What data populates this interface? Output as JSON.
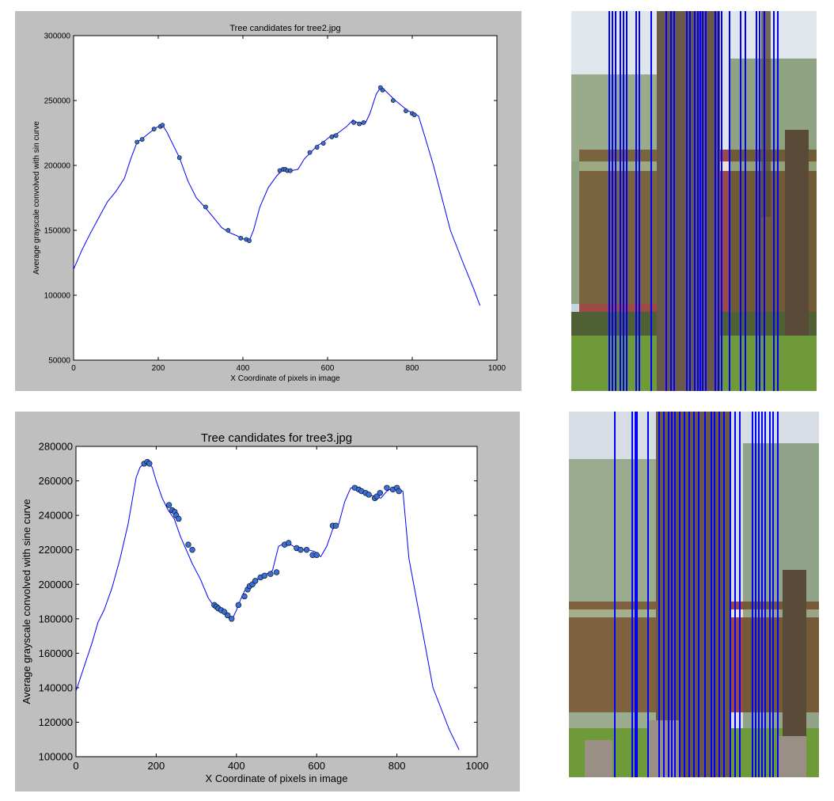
{
  "chart_data": [
    {
      "type": "line",
      "title": "Tree candidates for tree2.jpg",
      "xlabel": "X Coordinate of pixels in image",
      "ylabel": "Average grayscale convolved with sin curve",
      "xlim": [
        0,
        1000
      ],
      "ylim": [
        50000,
        300000
      ],
      "xticks": [
        0,
        200,
        400,
        600,
        800,
        1000
      ],
      "yticks": [
        50000,
        100000,
        150000,
        200000,
        250000,
        300000
      ],
      "xtick_labels": [
        "0",
        "200",
        "400",
        "600",
        "800",
        "1000"
      ],
      "ytick_labels": [
        "50000",
        "100000",
        "150000",
        "200000",
        "250000",
        "300000"
      ],
      "grid": false,
      "line_color": "#0000ff",
      "marker_color": "#3a6fd8",
      "series": [
        {
          "x": [
            0,
            20,
            40,
            60,
            80,
            100,
            120,
            135,
            150,
            160,
            175,
            190,
            200,
            210,
            220,
            235,
            250,
            270,
            290,
            310,
            330,
            350,
            370,
            385,
            395,
            405,
            415,
            425,
            440,
            460,
            480,
            495,
            505,
            515,
            530,
            545,
            560,
            575,
            590,
            605,
            625,
            645,
            660,
            670,
            680,
            690,
            700,
            715,
            725,
            735,
            760,
            790,
            805,
            815,
            830,
            850,
            870,
            890,
            920,
            945,
            960
          ],
          "y": [
            120000,
            135000,
            148000,
            160000,
            172000,
            180000,
            190000,
            205000,
            218000,
            220000,
            224000,
            228000,
            230000,
            231000,
            226000,
            216000,
            206000,
            188000,
            175000,
            168000,
            160000,
            152000,
            148000,
            146000,
            144000,
            143000,
            142000,
            150000,
            168000,
            183000,
            192000,
            197000,
            197000,
            196000,
            197000,
            205000,
            210000,
            215000,
            218000,
            222000,
            225000,
            230000,
            235000,
            233000,
            232000,
            233000,
            240000,
            255000,
            260000,
            258000,
            250000,
            242000,
            240000,
            238000,
            222000,
            200000,
            175000,
            150000,
            125000,
            105000,
            92000
          ]
        }
      ],
      "markers": {
        "x": [
          150,
          162,
          190,
          205,
          210,
          250,
          312,
          365,
          395,
          408,
          415,
          487,
          495,
          500,
          505,
          512,
          558,
          575,
          590,
          610,
          620,
          662,
          675,
          685,
          725,
          730,
          755,
          785,
          800,
          805
        ],
        "y": [
          218000,
          220000,
          228000,
          230000,
          231000,
          206000,
          168000,
          150000,
          144000,
          143000,
          142000,
          196000,
          197000,
          197000,
          196000,
          196000,
          210000,
          214000,
          217000,
          222000,
          223000,
          233000,
          232000,
          233000,
          260000,
          258000,
          250000,
          242000,
          240000,
          239000
        ]
      }
    },
    {
      "type": "line",
      "title": "Tree candidates for tree3.jpg",
      "xlabel": "X Coordinate of pixels in image",
      "ylabel": "Average grayscale convolved with sine curve",
      "xlim": [
        0,
        1000
      ],
      "ylim": [
        100000,
        280000
      ],
      "xticks": [
        0,
        200,
        400,
        600,
        800,
        1000
      ],
      "yticks": [
        100000,
        120000,
        140000,
        160000,
        180000,
        200000,
        220000,
        240000,
        260000,
        280000
      ],
      "xtick_labels": [
        "0",
        "200",
        "400",
        "600",
        "800",
        "1000"
      ],
      "ytick_labels": [
        "100000",
        "120000",
        "140000",
        "160000",
        "180000",
        "200000",
        "220000",
        "240000",
        "260000",
        "280000"
      ],
      "grid": false,
      "line_color": "#0000ff",
      "marker_color": "#3a6fd8",
      "series": [
        {
          "x": [
            0,
            20,
            40,
            55,
            70,
            90,
            110,
            130,
            150,
            160,
            170,
            180,
            190,
            200,
            215,
            230,
            245,
            260,
            275,
            290,
            310,
            330,
            345,
            360,
            375,
            390,
            400,
            410,
            420,
            430,
            445,
            460,
            475,
            490,
            505,
            520,
            535,
            550,
            565,
            580,
            595,
            610,
            625,
            640,
            655,
            670,
            685,
            700,
            715,
            730,
            745,
            760,
            775,
            790,
            805,
            815,
            830,
            850,
            870,
            890,
            910,
            930,
            955
          ],
          "y": [
            138000,
            152000,
            166000,
            178000,
            185000,
            198000,
            215000,
            235000,
            262000,
            268000,
            270000,
            270000,
            268000,
            260000,
            250000,
            243000,
            238000,
            228000,
            220000,
            212000,
            203000,
            192000,
            187000,
            184000,
            182000,
            180000,
            185000,
            191000,
            196000,
            198000,
            202000,
            204000,
            206000,
            208000,
            222000,
            224000,
            223000,
            221000,
            220000,
            220000,
            219000,
            216000,
            222000,
            232000,
            235000,
            248000,
            256000,
            255000,
            253000,
            252000,
            251000,
            250000,
            254000,
            256000,
            255000,
            254000,
            215000,
            190000,
            165000,
            140000,
            128000,
            116000,
            104000
          ]
        }
      ],
      "markers": {
        "x": [
          170,
          178,
          183,
          232,
          240,
          246,
          250,
          256,
          280,
          290,
          345,
          350,
          355,
          362,
          370,
          378,
          388,
          405,
          420,
          428,
          433,
          440,
          447,
          460,
          470,
          485,
          500,
          520,
          530,
          550,
          560,
          575,
          590,
          600,
          640,
          648,
          695,
          705,
          712,
          722,
          730,
          745,
          750,
          758,
          775,
          790,
          800,
          805
        ],
        "y": [
          270000,
          271000,
          270000,
          246000,
          243000,
          242000,
          240000,
          238000,
          223000,
          220000,
          188000,
          187000,
          186000,
          185000,
          184000,
          182000,
          180000,
          188000,
          193000,
          197000,
          199000,
          200000,
          202000,
          204000,
          205000,
          206000,
          207000,
          223000,
          224000,
          221000,
          220000,
          220000,
          217000,
          217000,
          234000,
          234000,
          256000,
          255000,
          254000,
          253000,
          252000,
          250000,
          251000,
          253000,
          256000,
          255000,
          256000,
          254000
        ]
      }
    }
  ]
}
